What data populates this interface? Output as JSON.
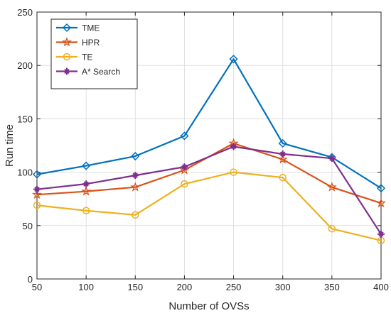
{
  "chart_data": {
    "type": "line",
    "title": "",
    "xlabel": "Number of OVSs",
    "ylabel": "Run time",
    "x": [
      50,
      100,
      150,
      200,
      250,
      300,
      350,
      400
    ],
    "xlim": [
      50,
      400
    ],
    "ylim": [
      0,
      250
    ],
    "xticks": [
      50,
      100,
      150,
      200,
      250,
      300,
      350,
      400
    ],
    "yticks": [
      0,
      50,
      100,
      150,
      200,
      250
    ],
    "grid": true,
    "legend_position": "top-left",
    "series": [
      {
        "name": "TME",
        "color": "#0072BD",
        "marker": "diamond",
        "values": [
          98,
          106,
          115,
          134,
          206,
          127,
          114,
          85
        ]
      },
      {
        "name": "HPR",
        "color": "#D95319",
        "marker": "star",
        "values": [
          79,
          82,
          86,
          102,
          127,
          112,
          86,
          71
        ]
      },
      {
        "name": "TE",
        "color": "#EDB120",
        "marker": "circle",
        "values": [
          69,
          64,
          60,
          89,
          100,
          95,
          47,
          36
        ]
      },
      {
        "name": "A* Search",
        "color": "#7E2F8E",
        "marker": "asterisk",
        "values": [
          84,
          89,
          97,
          105,
          124,
          117,
          113,
          42
        ]
      }
    ]
  }
}
